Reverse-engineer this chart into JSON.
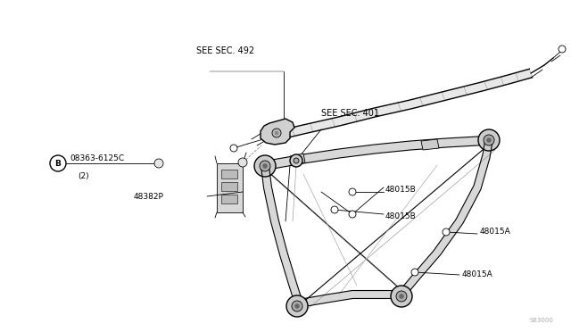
{
  "bg_color": "#ffffff",
  "line_color": "#000000",
  "gray_fill": "#d8d8d8",
  "light_fill": "#eeeeee",
  "watermark": "S83000",
  "labels": {
    "see_sec_492": "SEE SEC. 492",
    "see_sec_401": "SEE SEC. 401",
    "part_b": "B",
    "part_08363": "08363-6125C",
    "part_qty": "(2)",
    "part_48382P": "48382P",
    "part_48015B_1": "48015B",
    "part_48015B_2": "48015B",
    "part_48015A_1": "48015A",
    "part_48015A_2": "48015A"
  },
  "fig_width": 6.4,
  "fig_height": 3.72,
  "dpi": 100
}
